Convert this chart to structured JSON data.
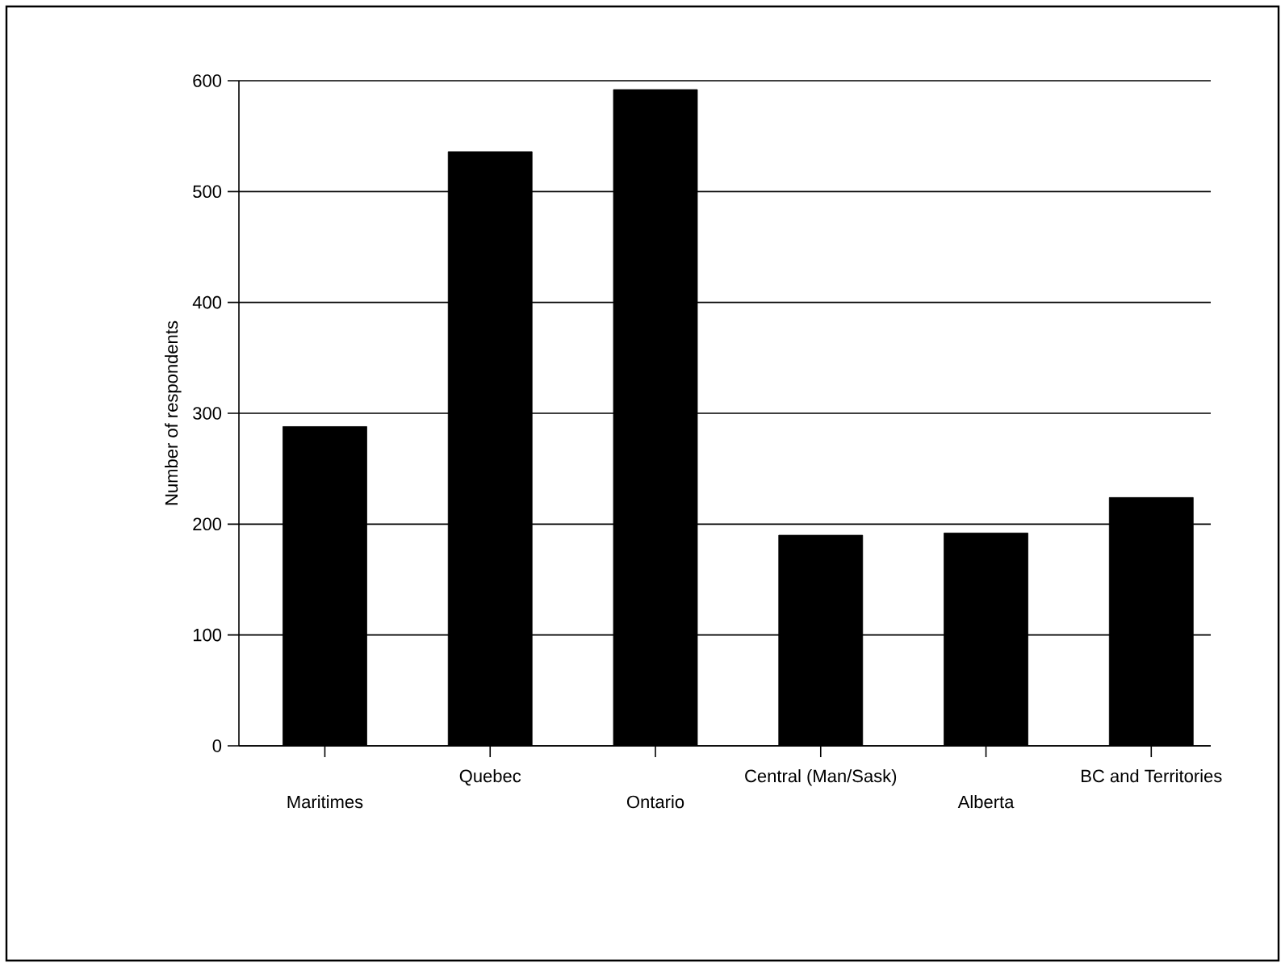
{
  "chart_data": {
    "type": "bar",
    "ylabel": "Number of respondents",
    "categories": [
      "Maritimes",
      "Quebec",
      "Ontario",
      "Central (Man/Sask)",
      "Alberta",
      "BC and Territories"
    ],
    "values": [
      288,
      536,
      592,
      190,
      192,
      224
    ],
    "color": "#000000",
    "ylim": [
      0,
      600
    ],
    "yticks": [
      0,
      100,
      200,
      300,
      400,
      500,
      600
    ],
    "grid": "y"
  }
}
